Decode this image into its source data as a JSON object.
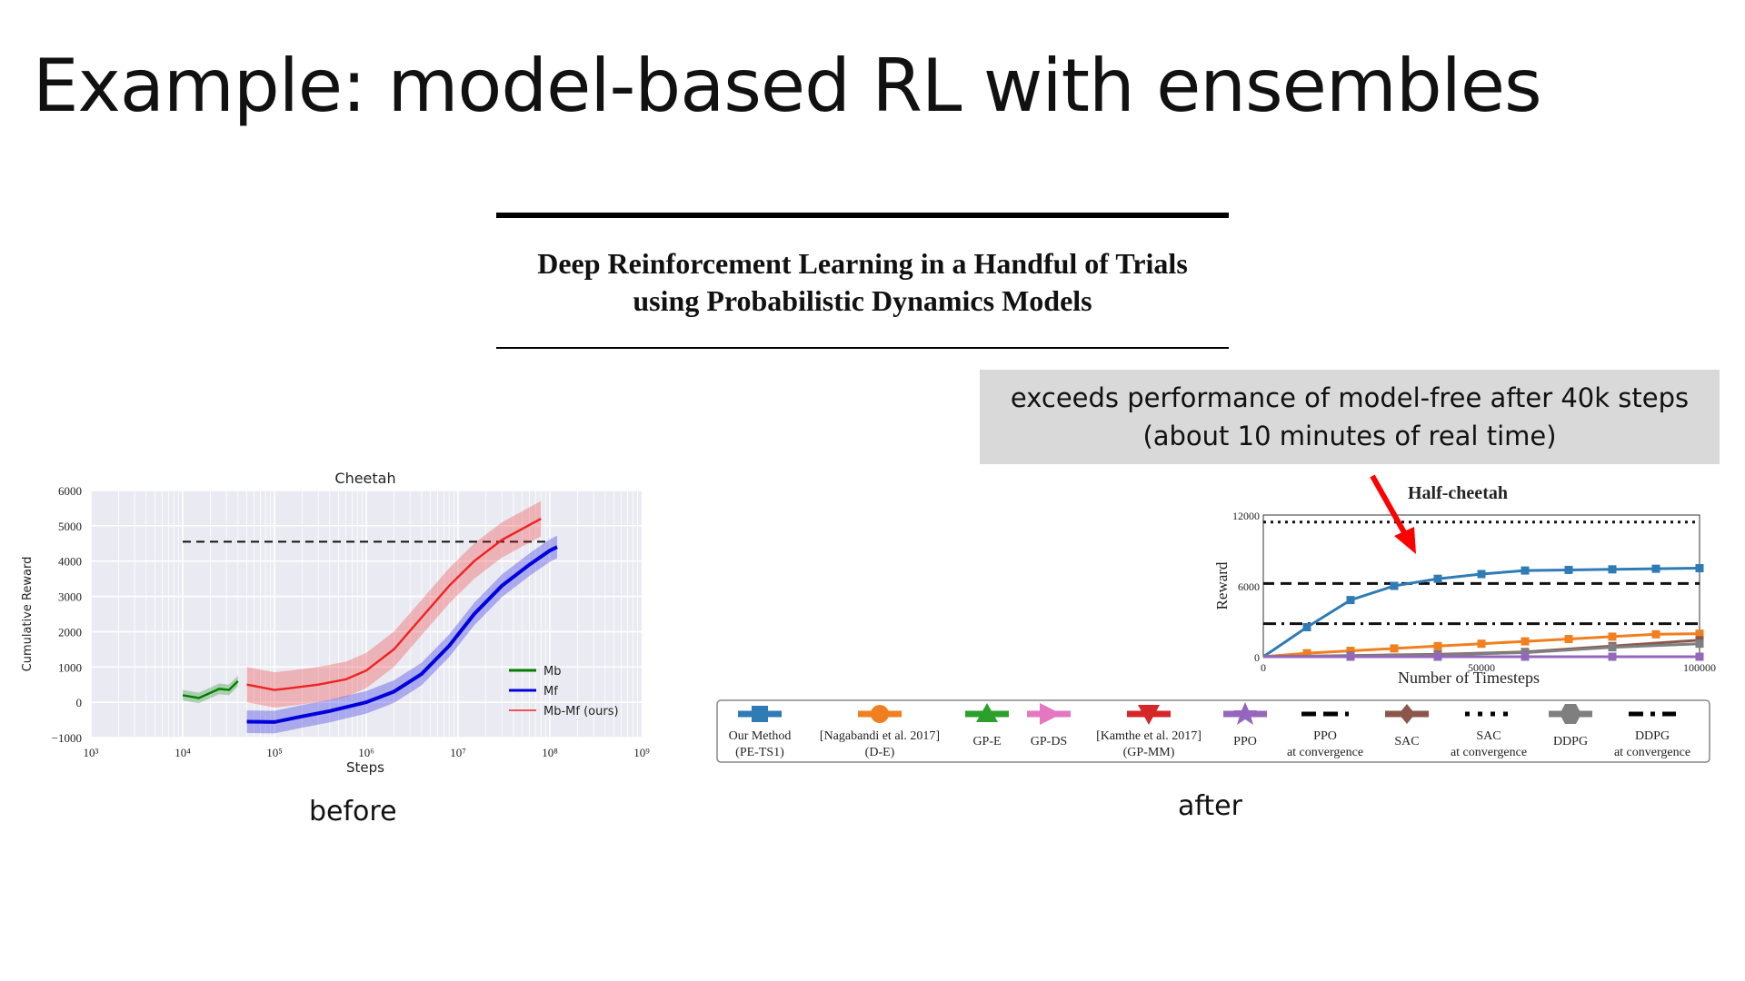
{
  "slide": {
    "title": "Example: model-based RL with ensembles",
    "paper_title_line1": "Deep Reinforcement Learning in a Handful of Trials",
    "paper_title_line2": "using Probabilistic Dynamics Models",
    "callout_line1": "exceeds performance of model-free after 40k steps",
    "callout_line2": "(about 10 minutes of real time)",
    "caption_before": "before",
    "caption_after": "after",
    "colors": {
      "callout_bg": "#d9d9d9",
      "arrow": "#ff0000"
    }
  },
  "chart_data": [
    {
      "type": "line",
      "title": "Cheetah",
      "xlabel": "Steps",
      "ylabel": "Cumulative Reward",
      "xscale": "log",
      "xlim": [
        1000,
        1000000000
      ],
      "ylim": [
        -1000,
        6000
      ],
      "xticks": [
        "10³",
        "10⁴",
        "10⁵",
        "10⁶",
        "10⁷",
        "10⁸",
        "10⁹"
      ],
      "yticks": [
        "6000",
        "5000",
        "4000",
        "3000",
        "2000",
        "1000",
        "0",
        "−1000"
      ],
      "grid": true,
      "legend_position": "lower-right",
      "reference_line": 4550,
      "series": [
        {
          "name": "Mb",
          "color": "#008000",
          "points": [
            [
              10000,
              200
            ],
            [
              15000,
              120
            ],
            [
              25000,
              380
            ],
            [
              32000,
              350
            ],
            [
              40000,
              600
            ]
          ]
        },
        {
          "name": "Mf",
          "color": "#0000dd",
          "points": [
            [
              50000,
              -550
            ],
            [
              100000,
              -560
            ],
            [
              200000,
              -400
            ],
            [
              400000,
              -250
            ],
            [
              1000000,
              0
            ],
            [
              2000000,
              300
            ],
            [
              4000000,
              800
            ],
            [
              8000000,
              1600
            ],
            [
              15000000,
              2500
            ],
            [
              30000000,
              3300
            ],
            [
              60000000,
              3900
            ],
            [
              100000000,
              4300
            ],
            [
              120000000,
              4400
            ]
          ]
        },
        {
          "name": "Mb-Mf (ours)",
          "color": "#ee2222",
          "points": [
            [
              50000,
              500
            ],
            [
              100000,
              350
            ],
            [
              150000,
              400
            ],
            [
              300000,
              500
            ],
            [
              600000,
              650
            ],
            [
              1000000,
              900
            ],
            [
              2000000,
              1500
            ],
            [
              4000000,
              2400
            ],
            [
              8000000,
              3300
            ],
            [
              15000000,
              4000
            ],
            [
              30000000,
              4600
            ],
            [
              80000000,
              5200
            ]
          ]
        }
      ]
    },
    {
      "type": "line",
      "title": "Half-cheetah",
      "xlabel": "Number of Timesteps",
      "ylabel": "Reward",
      "xlim": [
        0,
        100000
      ],
      "ylim": [
        0,
        12000
      ],
      "xticks": [
        "0",
        "50000",
        "100000"
      ],
      "yticks": [
        "12000",
        "6000",
        "0"
      ],
      "reference_lines": [
        {
          "name": "SAC at convergence",
          "style": "dotted",
          "y": 11400
        },
        {
          "name": "PPO at convergence",
          "style": "dashed",
          "y": 6200
        },
        {
          "name": "DDPG at convergence",
          "style": "dashdot",
          "y": 2800
        }
      ],
      "series": [
        {
          "name": "Our Method (PE-TS1)",
          "color": "#2f7bb5",
          "points": [
            [
              0,
              0
            ],
            [
              10000,
              2500
            ],
            [
              20000,
              4800
            ],
            [
              30000,
              6000
            ],
            [
              40000,
              6600
            ],
            [
              50000,
              7000
            ],
            [
              60000,
              7300
            ],
            [
              70000,
              7350
            ],
            [
              80000,
              7400
            ],
            [
              90000,
              7450
            ],
            [
              100000,
              7500
            ]
          ]
        },
        {
          "name": "[Nagabandi et al. 2017] (D-E)",
          "color": "#f07f1f",
          "points": [
            [
              0,
              0
            ],
            [
              10000,
              300
            ],
            [
              20000,
              500
            ],
            [
              30000,
              700
            ],
            [
              40000,
              900
            ],
            [
              50000,
              1100
            ],
            [
              60000,
              1300
            ],
            [
              70000,
              1500
            ],
            [
              80000,
              1700
            ],
            [
              90000,
              1900
            ],
            [
              100000,
              1950
            ]
          ]
        },
        {
          "name": "SAC",
          "color": "#8c564b",
          "points": [
            [
              0,
              0
            ],
            [
              20000,
              100
            ],
            [
              40000,
              200
            ],
            [
              60000,
              400
            ],
            [
              80000,
              900
            ],
            [
              100000,
              1400
            ]
          ]
        },
        {
          "name": "DDPG",
          "color": "#7f7f7f",
          "points": [
            [
              0,
              0
            ],
            [
              20000,
              80
            ],
            [
              40000,
              150
            ],
            [
              60000,
              350
            ],
            [
              80000,
              800
            ],
            [
              100000,
              1100
            ]
          ]
        },
        {
          "name": "PPO",
          "color": "#9467bd",
          "points": [
            [
              0,
              0
            ],
            [
              20000,
              0
            ],
            [
              40000,
              0
            ],
            [
              60000,
              0
            ],
            [
              80000,
              0
            ],
            [
              100000,
              0
            ]
          ]
        }
      ],
      "legend": [
        {
          "label_line1": "Our Method",
          "label_line2": "(PE-TS1)",
          "color": "#2f7bb5",
          "marker": "square"
        },
        {
          "label_line1": "[Nagabandi et al. 2017]",
          "label_line2": "(D-E)",
          "color": "#f07f1f",
          "marker": "circle"
        },
        {
          "label_line1": "GP-E",
          "label_line2": "",
          "color": "#2ca02c",
          "marker": "triangle-up"
        },
        {
          "label_line1": "GP-DS",
          "label_line2": "",
          "color": "#e377c2",
          "marker": "triangle-right"
        },
        {
          "label_line1": "[Kamthe et al. 2017]",
          "label_line2": "(GP-MM)",
          "color": "#d62728",
          "marker": "triangle-down"
        },
        {
          "label_line1": "PPO",
          "label_line2": "",
          "color": "#9467bd",
          "marker": "star"
        },
        {
          "label_line1": "PPO",
          "label_line2": "at convergence",
          "color": "#000000",
          "marker": "dashed"
        },
        {
          "label_line1": "SAC",
          "label_line2": "",
          "color": "#8c564b",
          "marker": "diamond"
        },
        {
          "label_line1": "SAC",
          "label_line2": "at convergence",
          "color": "#000000",
          "marker": "dotted"
        },
        {
          "label_line1": "DDPG",
          "label_line2": "",
          "color": "#7f7f7f",
          "marker": "hexagon"
        },
        {
          "label_line1": "DDPG",
          "label_line2": "at convergence",
          "color": "#000000",
          "marker": "dashdot"
        }
      ]
    }
  ]
}
